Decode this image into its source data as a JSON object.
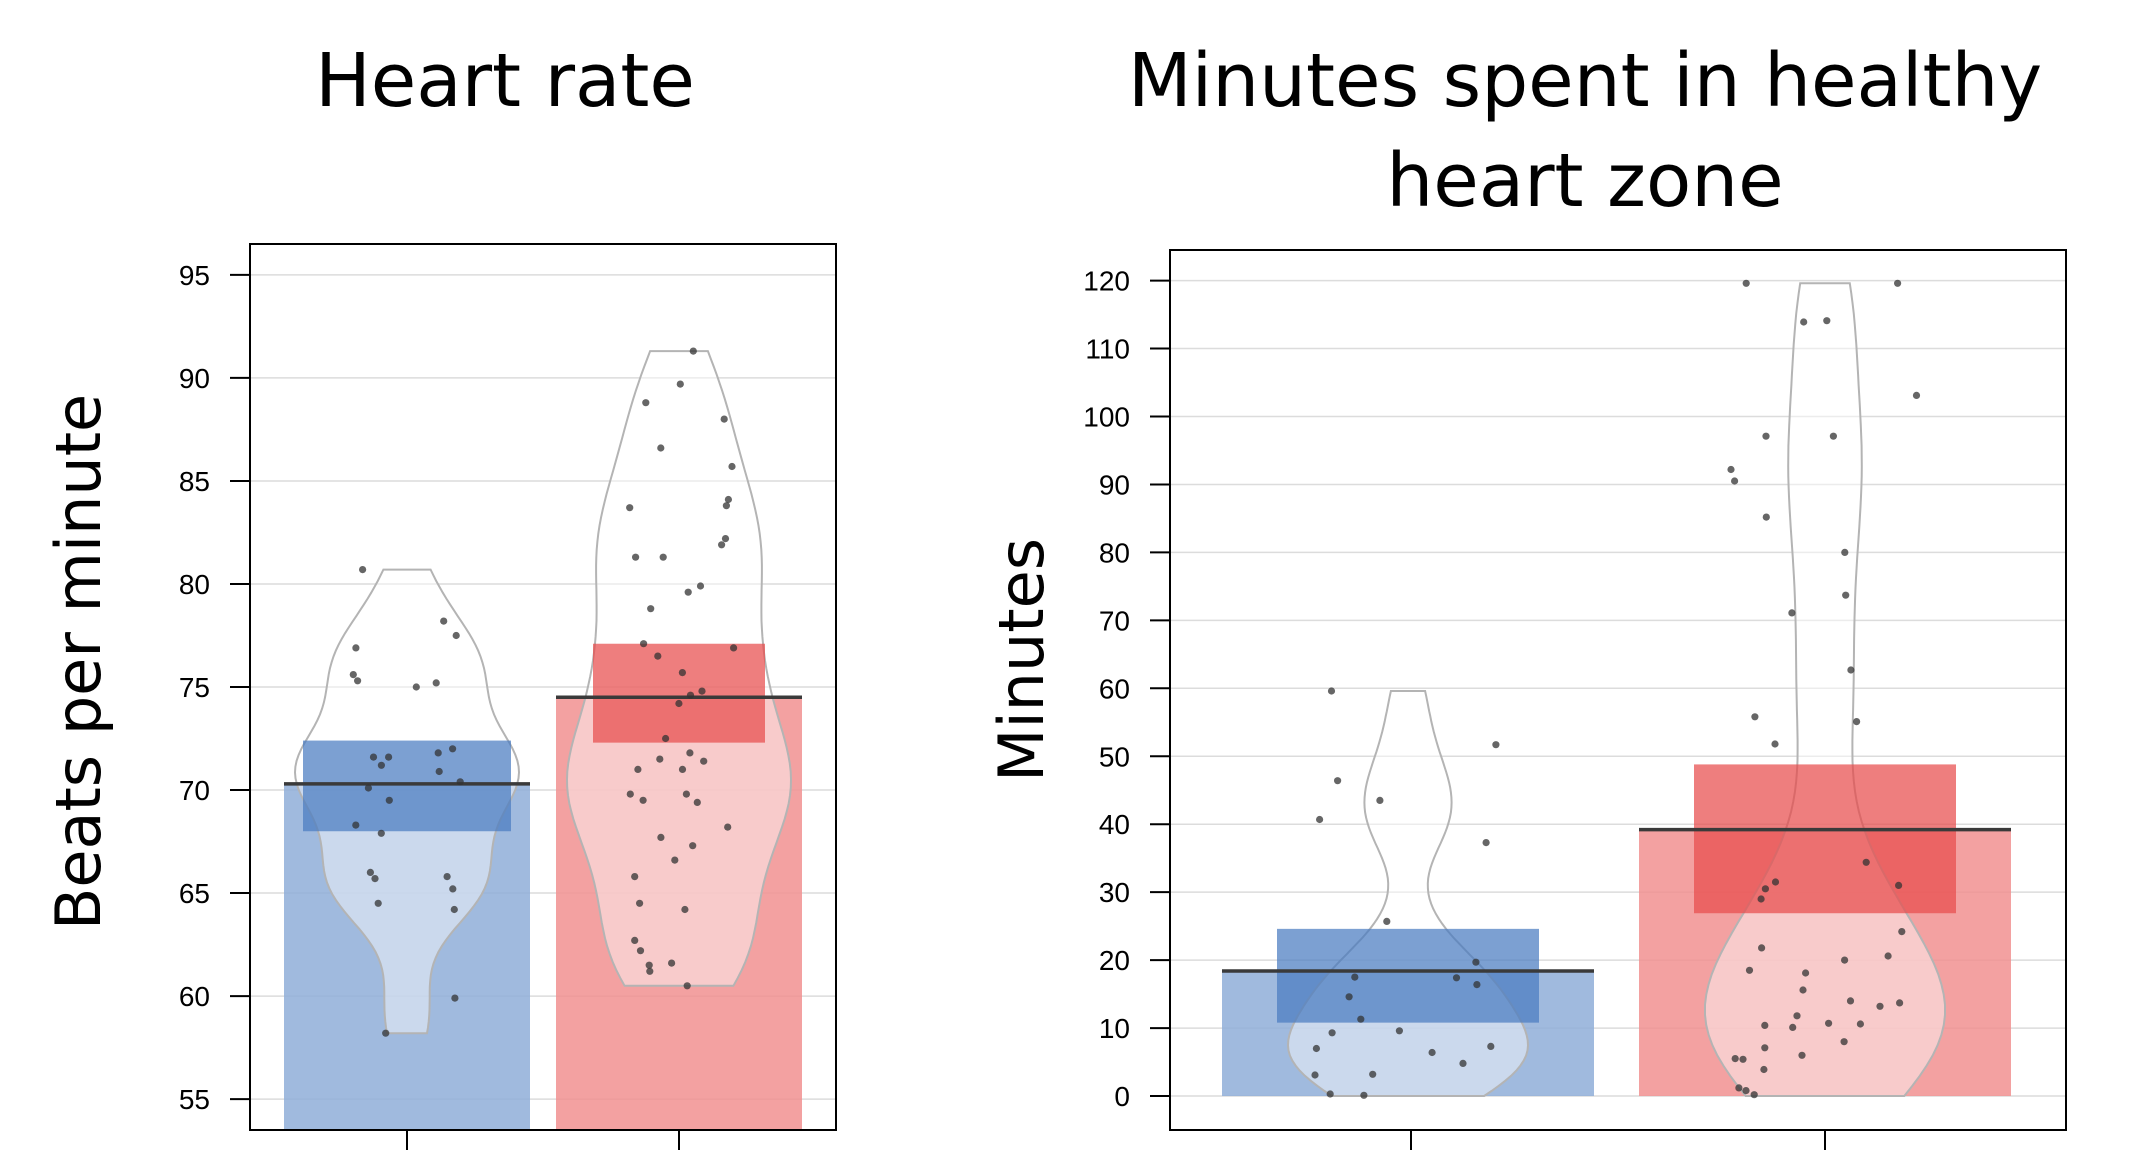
{
  "chart_data": [
    {
      "type": "bar",
      "title": "Heart rate",
      "xlabel": "",
      "ylabel": "Beats per minute",
      "ylim": [
        53.5,
        96.5
      ],
      "yticks": [
        55,
        60,
        65,
        70,
        75,
        80,
        85,
        90,
        95
      ],
      "grid": true,
      "legend": "none",
      "colors": {
        "group1": "#4a7cc0",
        "group2": "#e84c4c"
      },
      "series": [
        {
          "mean": 70.3,
          "ci": [
            68.0,
            72.4
          ],
          "range": [
            58.2,
            80.7
          ],
          "points": [
            80.7,
            78.2,
            77.5,
            76.9,
            75.6,
            75.3,
            75.2,
            75.0,
            72.0,
            71.8,
            71.6,
            71.6,
            71.2,
            70.9,
            70.4,
            70.1,
            69.5,
            68.3,
            67.9,
            66.0,
            65.8,
            65.7,
            65.2,
            64.5,
            64.2,
            59.9,
            58.2
          ]
        },
        {
          "mean": 74.5,
          "ci": [
            72.3,
            77.1
          ],
          "range": [
            60.5,
            91.3
          ],
          "points": [
            91.3,
            89.7,
            88.8,
            88.0,
            86.6,
            85.7,
            84.1,
            83.8,
            83.7,
            82.2,
            81.9,
            81.3,
            81.3,
            79.9,
            79.6,
            78.8,
            77.1,
            76.9,
            76.5,
            75.7,
            74.8,
            74.6,
            74.2,
            72.5,
            71.8,
            71.5,
            71.4,
            71.0,
            71.0,
            69.8,
            69.8,
            69.5,
            69.4,
            68.2,
            67.7,
            67.3,
            66.6,
            65.8,
            64.5,
            64.2,
            62.7,
            62.2,
            61.6,
            61.5,
            61.2,
            60.5
          ]
        }
      ]
    },
    {
      "type": "bar",
      "title": "Minutes spent in healthy heart zone",
      "xlabel": "",
      "ylabel": "Minutes",
      "ylim": [
        -5,
        124.5
      ],
      "yticks": [
        0,
        10,
        20,
        30,
        40,
        50,
        60,
        70,
        80,
        90,
        100,
        110,
        120
      ],
      "grid": true,
      "legend": "none",
      "colors": {
        "group1": "#4a7cc0",
        "group2": "#e84c4c"
      },
      "series": [
        {
          "mean": 18.4,
          "ci": [
            10.8,
            24.6
          ],
          "range": [
            0,
            59.6
          ],
          "points": [
            59.6,
            51.7,
            46.4,
            43.5,
            40.7,
            37.3,
            25.7,
            19.7,
            17.5,
            17.4,
            16.4,
            14.6,
            11.3,
            9.6,
            9.3,
            7.3,
            7.0,
            6.4,
            4.8,
            3.2,
            3.1,
            0.3,
            0.1
          ]
        },
        {
          "mean": 39.2,
          "ci": [
            26.9,
            48.8
          ],
          "range": [
            0,
            119.6
          ],
          "points": [
            119.6,
            119.6,
            114.1,
            113.9,
            103.1,
            97.1,
            97.1,
            92.2,
            90.5,
            85.2,
            80.0,
            73.7,
            71.1,
            62.7,
            55.8,
            55.1,
            51.8,
            34.4,
            31.5,
            31.0,
            30.5,
            29.0,
            24.2,
            21.8,
            20.6,
            20.0,
            18.5,
            18.1,
            15.6,
            14.0,
            13.7,
            13.2,
            11.8,
            10.7,
            10.6,
            10.4,
            10.1,
            8.0,
            7.1,
            6.0,
            5.5,
            5.4,
            3.9,
            1.2,
            0.8,
            0.2
          ]
        }
      ]
    }
  ]
}
